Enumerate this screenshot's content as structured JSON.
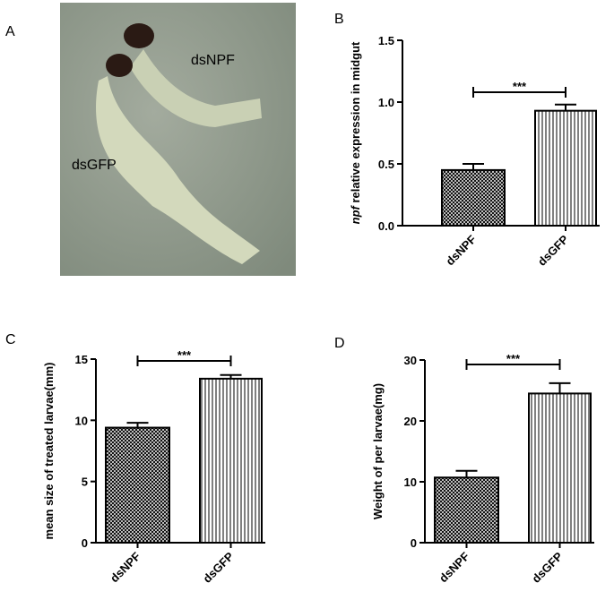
{
  "image_panel": {
    "label": "A",
    "annotations": [
      "dsNPF",
      "dsGFP"
    ]
  },
  "chart_data": [
    {
      "type": "bar",
      "panel": "B",
      "ylabel_gene": "npf",
      "ylabel": "relative expression in midgut",
      "categories": [
        "dsNPF",
        "dsGFP"
      ],
      "values": [
        0.45,
        0.93
      ],
      "errors": [
        0.05,
        0.05
      ],
      "ylim": [
        0,
        1.5
      ],
      "yticks": [
        {
          "value": 0,
          "label": "0.0"
        },
        0.5,
        {
          "value": 1,
          "label": "1.0"
        },
        1.5
      ],
      "significance": "***"
    },
    {
      "type": "bar",
      "panel": "C",
      "ylabel": "mean size of treated larvae(mm)",
      "categories": [
        "dsNPF",
        "dsGFP"
      ],
      "values": [
        9.4,
        13.4
      ],
      "errors": [
        0.4,
        0.3
      ],
      "ylim": [
        0,
        15
      ],
      "yticks": [
        0,
        5,
        10,
        15
      ],
      "significance": "***"
    },
    {
      "type": "bar",
      "panel": "D",
      "ylabel": "Weight of per larvae(mg)",
      "categories": [
        "dsNPF",
        "dsGFP"
      ],
      "values": [
        10.7,
        24.5
      ],
      "errors": [
        1.1,
        1.7
      ],
      "ylim": [
        0,
        30
      ],
      "yticks": [
        0,
        10,
        20,
        30
      ],
      "significance": "***"
    }
  ]
}
